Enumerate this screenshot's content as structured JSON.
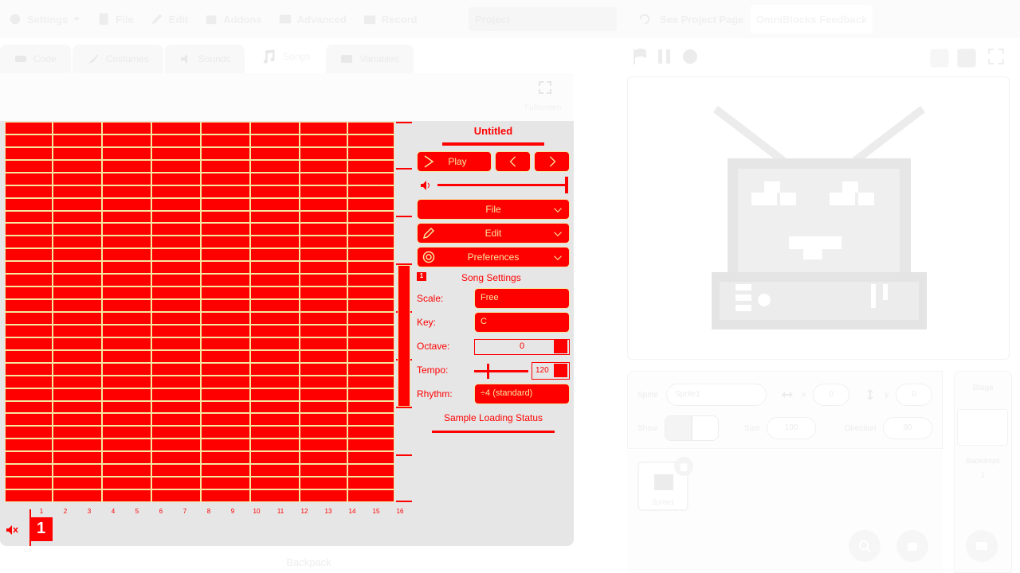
{
  "menu": {
    "settings": "Settings",
    "file": "File",
    "edit": "Edit",
    "addons": "Addons",
    "advanced": "Advanced",
    "record": "Record",
    "project_title": "Project",
    "see_project_page": "See Project Page",
    "feedback": "OmniBlocks Feedback"
  },
  "tabs": [
    "Code",
    "Costumes",
    "Sounds",
    "Songs",
    "Variables"
  ],
  "editor": {
    "fullscreen_label": "Fullscreen"
  },
  "song": {
    "title": "Untitled",
    "play_label": "Play",
    "file_menu": "File",
    "edit_menu": "Edit",
    "preferences_menu": "Preferences",
    "section_badge": "1",
    "settings_title": "Song Settings",
    "scale_label": "Scale:",
    "scale_value": "Free",
    "key_label": "Key:",
    "key_value": "C",
    "octave_label": "Octave:",
    "octave_value": "0",
    "tempo_label": "Tempo:",
    "tempo_value": "120",
    "rhythm_label": "Rhythm:",
    "rhythm_value": "÷4 (standard)",
    "sample_status": "Sample Loading Status",
    "bar_numbers": [
      "1",
      "2",
      "3",
      "4",
      "5",
      "6",
      "7",
      "8",
      "9",
      "10",
      "11",
      "12",
      "13",
      "14",
      "15",
      "16"
    ],
    "pattern_number": "1"
  },
  "backpack": "Backpack",
  "sprite_info": {
    "sprite_label": "Sprite",
    "sprite_name": "Sprite1",
    "x_label": "x",
    "x_value": "0",
    "y_label": "y",
    "y_value": "0",
    "show_label": "Show",
    "size_label": "Size",
    "size_value": "100",
    "direction_label": "Direction",
    "direction_value": "90"
  },
  "sprite_list": [
    {
      "name": "Sprite1"
    }
  ],
  "stage_panel": {
    "stage_label": "Stage",
    "backdrops_label": "Backdrops",
    "backdrops_count": "1"
  },
  "colors": {
    "accent_red": "#ff0000",
    "accent_yellow": "#f6e6a0",
    "panel_gray": "#e6e6e6"
  }
}
